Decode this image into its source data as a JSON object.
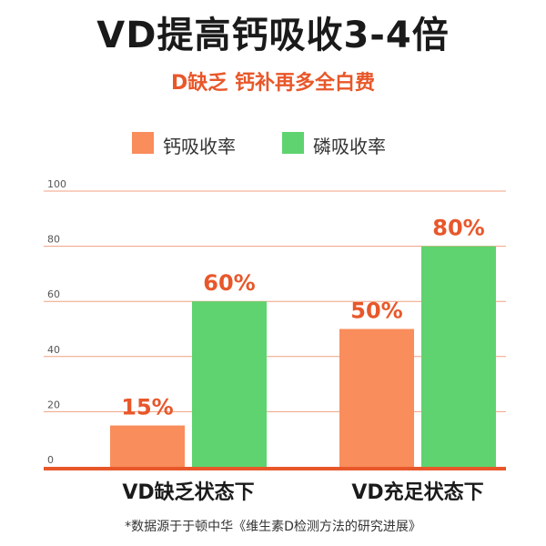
{
  "title": "VD提高钙吸收3-4倍",
  "subtitle": "D缺乏 钙补再多全白费",
  "source": "*数据源于于顿中华《维生素D检测方法的研究进展》",
  "colors": {
    "accent": "#e8572a",
    "calcium": "#f98d5c",
    "phosphorus": "#5fd36f",
    "gridline": "#f0a080",
    "baseline": "#e8572a"
  },
  "chart_data": {
    "type": "bar",
    "categories": [
      "VD缺乏状态下",
      "VD充足状态下"
    ],
    "series": [
      {
        "name": "钙吸收率",
        "values": [
          15,
          50
        ],
        "labels": [
          "15%",
          "50%"
        ],
        "color": "#f98d5c"
      },
      {
        "name": "磷吸收率",
        "values": [
          60,
          80
        ],
        "labels": [
          "60%",
          "80%"
        ],
        "color": "#5fd36f"
      }
    ],
    "ylim": [
      0,
      100
    ],
    "yticks": [
      "0",
      "20",
      "40",
      "60",
      "80",
      "100"
    ],
    "grid": true,
    "legend": "top"
  }
}
